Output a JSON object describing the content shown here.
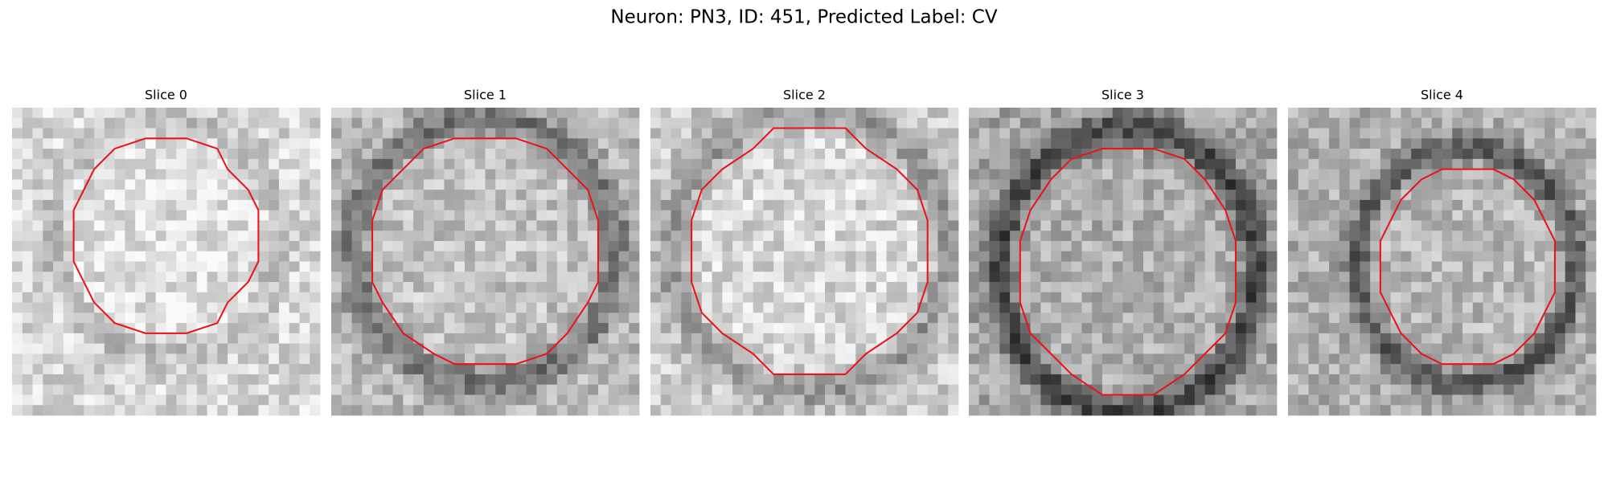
{
  "title": "Neuron: PN3, ID: 451, Predicted Label: CV",
  "panels": [
    {
      "title": "Slice 0"
    },
    {
      "title": "Slice 1"
    },
    {
      "title": "Slice 2"
    },
    {
      "title": "Slice 3"
    },
    {
      "title": "Slice 4"
    }
  ]
}
